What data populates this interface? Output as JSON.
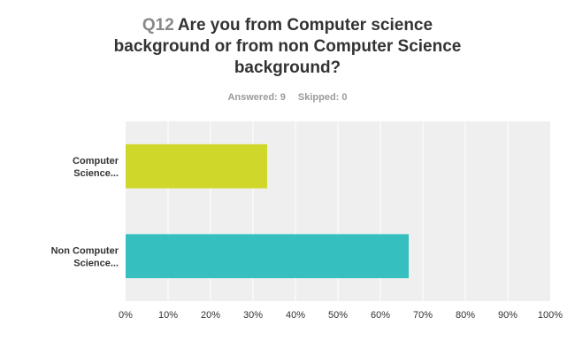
{
  "question": {
    "number": "Q12",
    "text_lines": [
      "Are you from Computer science",
      "background or from non Computer Science",
      "background?"
    ]
  },
  "stats": {
    "answered": "Answered: 9",
    "skipped": "Skipped: 0"
  },
  "colors": {
    "plot_background": "#efefef",
    "gridline": "#ffffff"
  },
  "chart_data": {
    "type": "bar",
    "orientation": "horizontal",
    "categories": [
      [
        "Computer",
        "Science..."
      ],
      [
        "Non Computer",
        "Science..."
      ]
    ],
    "values": [
      33.33,
      66.67
    ],
    "bar_colors": [
      "#cfd72a",
      "#35bfbf"
    ],
    "xlim": [
      0,
      100
    ],
    "xticks": [
      "0%",
      "10%",
      "20%",
      "30%",
      "40%",
      "50%",
      "60%",
      "70%",
      "80%",
      "90%",
      "100%"
    ],
    "grid": true
  }
}
